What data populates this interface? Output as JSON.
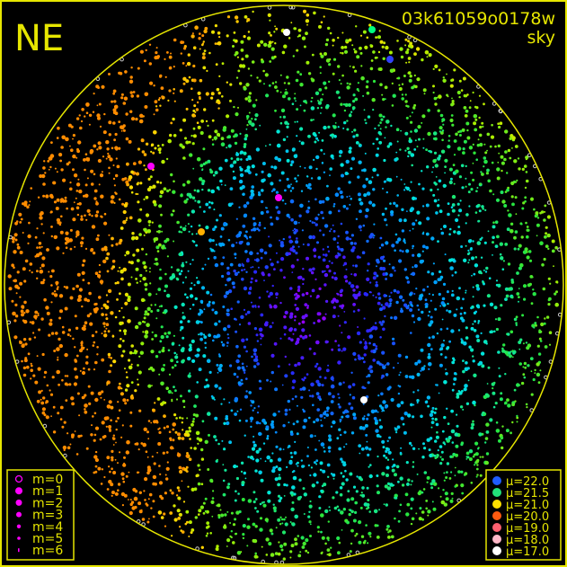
{
  "title": "NE",
  "frame_id": "03k61059o0178w",
  "subtitle": "sky",
  "colors": {
    "frame": "#e6e600",
    "background": "#000000",
    "magnitude_marker": "#ff00ff"
  },
  "chart_data": {
    "type": "scatter",
    "projection": "all-sky fisheye circle",
    "size_legend": {
      "position": "bottom-left",
      "entries": [
        "m=0",
        "m=1",
        "m=2",
        "m=3",
        "m=4",
        "m=5",
        "m=6"
      ]
    },
    "color_legend": {
      "position": "bottom-right",
      "entries": [
        {
          "label": "μ=22.0",
          "color": "#1f5cff"
        },
        {
          "label": "μ=21.5",
          "color": "#22e07a"
        },
        {
          "label": "μ=21.0",
          "color": "#ffe000"
        },
        {
          "label": "μ=20.0",
          "color": "#ff5a10"
        },
        {
          "label": "μ=19.0",
          "color": "#ff6070"
        },
        {
          "label": "μ=18.0",
          "color": "#ffb8c8"
        },
        {
          "label": "μ=17.0",
          "color": "#ffffff"
        }
      ]
    },
    "pattern": "darkest sky (μ≈22, blue/violet) near centre-right; brighter (μ≈21, green/yellow/orange) toward left and lower-left edge"
  }
}
